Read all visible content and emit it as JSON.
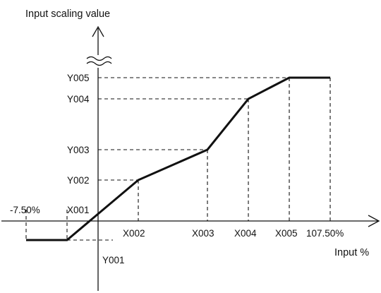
{
  "axes": {
    "y_title": "Input scaling value",
    "x_title": "Input %"
  },
  "labels": {
    "neg_limit": "-7.50%",
    "x001": "X001",
    "x002": "X002",
    "x003": "X003",
    "x004": "X004",
    "x005": "X005",
    "pos_limit": "107.50%",
    "y001": "Y001",
    "y002": "Y002",
    "y003": "Y003",
    "y004": "Y004",
    "y005": "Y005"
  },
  "axis_break": true,
  "colors": {
    "line": "#111111",
    "background": "#ffffff"
  }
}
